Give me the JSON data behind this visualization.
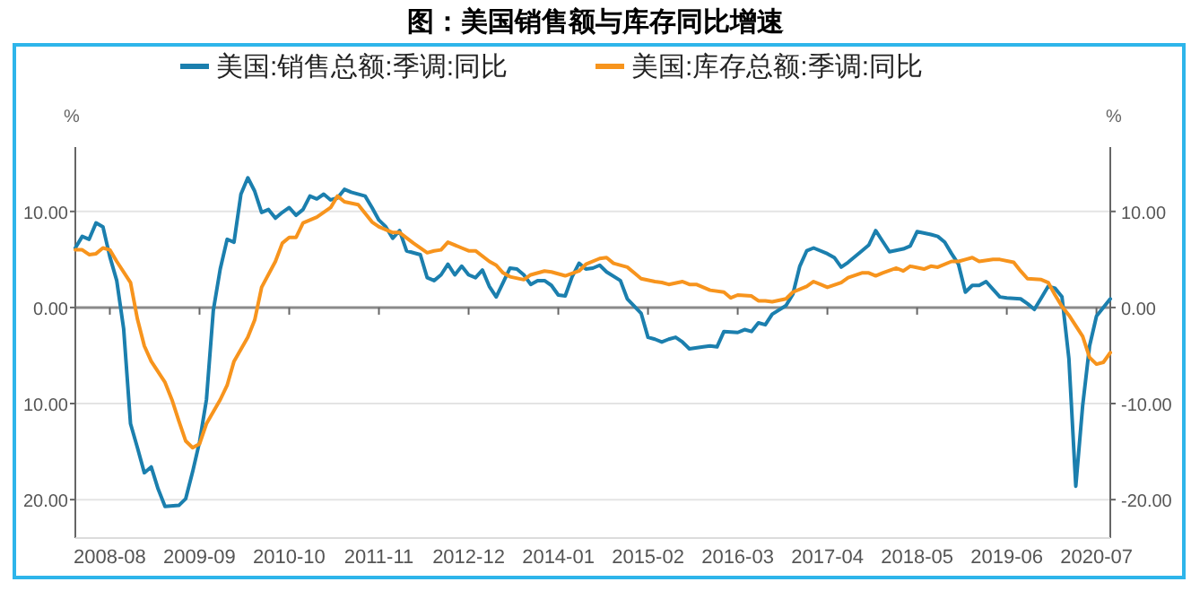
{
  "chart_data": {
    "type": "line",
    "title": "图：美国销售额与库存同比增速",
    "legend": "top",
    "grid": "y",
    "line_style": "solid",
    "marker": "none",
    "ylabel": "%",
    "y2label": "%",
    "xlim": [
      "2008-03",
      "2020-09"
    ],
    "xticks": [
      "2008-08",
      "2009-09",
      "2010-10",
      "2011-11",
      "2012-12",
      "2014-01",
      "2015-02",
      "2016-03",
      "2017-04",
      "2018-05",
      "2019-06",
      "2020-07"
    ],
    "ylim": [
      -24,
      16.7
    ],
    "yticks": [
      {
        "value": 10,
        "label": "10.00"
      },
      {
        "value": 0,
        "label": "0.00"
      },
      {
        "value": -10,
        "label": "10.00"
      },
      {
        "value": -20,
        "label": "20.00"
      }
    ],
    "y2lim": [
      -24,
      16.7
    ],
    "y2ticks": [
      {
        "value": 10,
        "label": "10.00"
      },
      {
        "value": 0,
        "label": "0.00"
      },
      {
        "value": -10,
        "label": "-10.00"
      },
      {
        "value": -20,
        "label": "-20.00"
      }
    ],
    "series": [
      {
        "name": "美国:销售总额:季调:同比",
        "color": "#1b7fae",
        "x": [
          "2008-03",
          "2008-04",
          "2008-05",
          "2008-06",
          "2008-07",
          "2008-08",
          "2008-09",
          "2008-10",
          "2008-11",
          "2008-12",
          "2009-01",
          "2009-02",
          "2009-03",
          "2009-04",
          "2009-06",
          "2009-07",
          "2009-08",
          "2009-09",
          "2009-10",
          "2009-11",
          "2009-12",
          "2010-01",
          "2010-02",
          "2010-03",
          "2010-04",
          "2010-05",
          "2010-06",
          "2010-07",
          "2010-08",
          "2010-09",
          "2010-10",
          "2010-11",
          "2010-12",
          "2011-01",
          "2011-02",
          "2011-03",
          "2011-04",
          "2011-05",
          "2011-06",
          "2011-07",
          "2011-09",
          "2011-10",
          "2011-11",
          "2011-12",
          "2012-01",
          "2012-02",
          "2012-03",
          "2012-05",
          "2012-06",
          "2012-07",
          "2012-08",
          "2012-09",
          "2012-10",
          "2012-11",
          "2012-12",
          "2013-01",
          "2013-02",
          "2013-03",
          "2013-04",
          "2013-05",
          "2013-06",
          "2013-07",
          "2013-08",
          "2013-09",
          "2013-10",
          "2013-11",
          "2013-12",
          "2014-01",
          "2014-02",
          "2014-03",
          "2014-04",
          "2014-05",
          "2014-06",
          "2014-07",
          "2014-08",
          "2014-10",
          "2014-11",
          "2015-01",
          "2015-02",
          "2015-03",
          "2015-04",
          "2015-05",
          "2015-06",
          "2015-07",
          "2015-08",
          "2015-10",
          "2015-11",
          "2015-12",
          "2016-01",
          "2016-03",
          "2016-04",
          "2016-05",
          "2016-06",
          "2016-07",
          "2016-08",
          "2016-10",
          "2016-11",
          "2016-12",
          "2017-01",
          "2017-02",
          "2017-04",
          "2017-05",
          "2017-06",
          "2017-07",
          "2017-09",
          "2017-10",
          "2017-11",
          "2017-12",
          "2018-01",
          "2018-03",
          "2018-04",
          "2018-05",
          "2018-07",
          "2018-08",
          "2018-09",
          "2018-10",
          "2018-11",
          "2018-12",
          "2019-01",
          "2019-02",
          "2019-03",
          "2019-04",
          "2019-05",
          "2019-06",
          "2019-08",
          "2019-09",
          "2019-10",
          "2019-11",
          "2019-12",
          "2020-01",
          "2020-02",
          "2020-03",
          "2020-04",
          "2020-05",
          "2020-06",
          "2020-07",
          "2020-09"
        ],
        "values": [
          6.2,
          7.4,
          7.1,
          8.8,
          8.4,
          5.3,
          2.8,
          -2.2,
          -12.1,
          -14.6,
          -17.2,
          -16.6,
          -18.9,
          -20.7,
          -20.6,
          -19.9,
          -17.1,
          -14.0,
          -9.6,
          -0.3,
          4.0,
          7.1,
          6.8,
          11.8,
          13.5,
          12.1,
          9.9,
          10.2,
          9.3,
          9.9,
          10.4,
          9.6,
          10.2,
          11.6,
          11.3,
          11.8,
          11.2,
          11.4,
          12.3,
          12.0,
          11.6,
          10.4,
          9.1,
          8.4,
          7.2,
          8.0,
          5.9,
          5.5,
          3.1,
          2.8,
          3.4,
          4.5,
          3.4,
          4.3,
          3.4,
          3.1,
          3.9,
          2.2,
          1.1,
          2.6,
          4.1,
          4.0,
          3.4,
          2.4,
          2.8,
          2.8,
          2.3,
          1.3,
          1.2,
          3.2,
          4.6,
          4.0,
          4.1,
          4.4,
          3.7,
          2.8,
          0.9,
          -0.6,
          -3.1,
          -3.3,
          -3.6,
          -3.3,
          -3.1,
          -3.6,
          -4.3,
          -4.1,
          -4.0,
          -4.1,
          -2.5,
          -2.6,
          -2.3,
          -2.5,
          -1.6,
          -1.8,
          -0.7,
          0.2,
          1.4,
          4.3,
          5.9,
          6.2,
          5.6,
          5.2,
          4.2,
          4.7,
          5.9,
          6.5,
          8.0,
          6.9,
          5.8,
          6.1,
          6.4,
          7.9,
          7.6,
          7.4,
          6.8,
          5.6,
          4.5,
          1.6,
          2.3,
          2.3,
          2.7,
          1.9,
          1.1,
          1.0,
          0.9,
          0.4,
          -0.2,
          1.0,
          2.2,
          2.0,
          1.1,
          -5.3,
          -18.6,
          -10.2,
          -4.0,
          -0.9,
          0.9
        ]
      },
      {
        "name": "美国:库存总额:季调:同比",
        "color": "#f7941d",
        "x": [
          "2008-03",
          "2008-04",
          "2008-05",
          "2008-06",
          "2008-07",
          "2008-08",
          "2008-09",
          "2008-11",
          "2008-12",
          "2009-01",
          "2009-02",
          "2009-04",
          "2009-05",
          "2009-06",
          "2009-07",
          "2009-08",
          "2009-09",
          "2009-10",
          "2009-12",
          "2010-01",
          "2010-02",
          "2010-04",
          "2010-05",
          "2010-06",
          "2010-08",
          "2010-09",
          "2010-10",
          "2010-11",
          "2010-12",
          "2011-02",
          "2011-04",
          "2011-05",
          "2011-06",
          "2011-08",
          "2011-10",
          "2011-11",
          "2012-01",
          "2012-02",
          "2012-04",
          "2012-06",
          "2012-07",
          "2012-08",
          "2012-09",
          "2012-11",
          "2012-12",
          "2013-01",
          "2013-03",
          "2013-04",
          "2013-05",
          "2013-06",
          "2013-08",
          "2013-09",
          "2013-11",
          "2013-12",
          "2014-02",
          "2014-04",
          "2014-05",
          "2014-07",
          "2014-08",
          "2014-09",
          "2014-11",
          "2014-12",
          "2015-01",
          "2015-03",
          "2015-04",
          "2015-05",
          "2015-07",
          "2015-08",
          "2015-09",
          "2015-11",
          "2016-01",
          "2016-02",
          "2016-03",
          "2016-05",
          "2016-06",
          "2016-07",
          "2016-08",
          "2016-10",
          "2016-11",
          "2017-01",
          "2017-02",
          "2017-03",
          "2017-04",
          "2017-06",
          "2017-07",
          "2017-09",
          "2017-10",
          "2017-11",
          "2017-12",
          "2018-02",
          "2018-03",
          "2018-04",
          "2018-06",
          "2018-07",
          "2018-08",
          "2018-10",
          "2018-11",
          "2018-12",
          "2019-01",
          "2019-02",
          "2019-04",
          "2019-05",
          "2019-07",
          "2019-08",
          "2019-09",
          "2019-11",
          "2019-12",
          "2020-01",
          "2020-02",
          "2020-03",
          "2020-05",
          "2020-06",
          "2020-07",
          "2020-08",
          "2020-09"
        ],
        "values": [
          6.0,
          6.0,
          5.5,
          5.6,
          6.2,
          6.0,
          4.8,
          2.6,
          -1.2,
          -4.0,
          -5.6,
          -7.8,
          -9.6,
          -11.8,
          -13.9,
          -14.6,
          -14.2,
          -12.1,
          -9.6,
          -8.1,
          -5.6,
          -3.1,
          -1.3,
          2.1,
          4.8,
          6.7,
          7.3,
          7.3,
          8.8,
          9.4,
          10.4,
          11.6,
          11.0,
          10.7,
          8.9,
          8.4,
          7.8,
          7.8,
          6.7,
          5.7,
          5.9,
          6.0,
          6.8,
          6.2,
          5.9,
          5.9,
          4.8,
          4.4,
          3.6,
          3.2,
          2.9,
          3.4,
          3.8,
          3.7,
          3.3,
          3.8,
          4.5,
          5.1,
          5.2,
          4.6,
          4.2,
          3.6,
          3.0,
          2.7,
          2.6,
          2.4,
          2.7,
          2.4,
          2.4,
          1.8,
          1.6,
          1.0,
          1.3,
          1.2,
          0.7,
          0.7,
          0.6,
          0.9,
          1.6,
          2.2,
          2.7,
          2.4,
          2.1,
          2.6,
          3.1,
          3.6,
          3.6,
          3.3,
          3.6,
          4.1,
          3.8,
          4.3,
          4.0,
          4.3,
          4.2,
          4.8,
          4.8,
          5.0,
          5.2,
          4.8,
          5.0,
          5.0,
          4.7,
          3.8,
          3.0,
          2.9,
          2.6,
          1.3,
          0.1,
          -0.8,
          -3.0,
          -5.2,
          -5.9,
          -5.7,
          -4.7
        ]
      }
    ]
  }
}
